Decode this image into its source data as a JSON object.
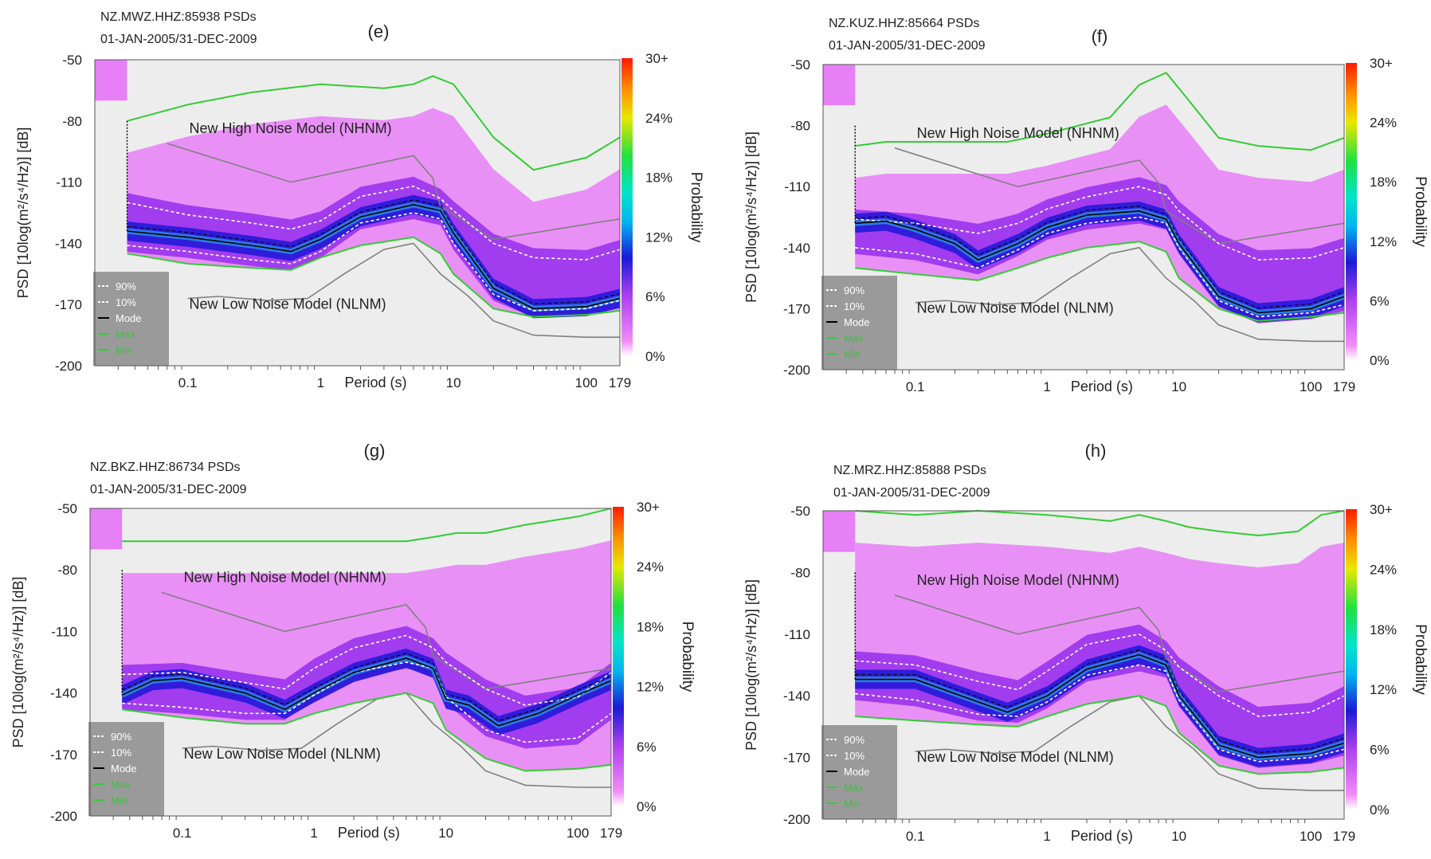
{
  "figure": {
    "x_axis_label": "Period (s)",
    "y_axis_label": "PSD [10log(m²/s⁴/Hz)] [dB]",
    "x_ticks": [
      "0.1",
      "1",
      "10",
      "100",
      "179"
    ],
    "y_ticks": [
      "-50",
      "-80",
      "-110",
      "-140",
      "-170",
      "-200"
    ],
    "colorbar_label": "Probability",
    "colorbar_ticks": [
      "30+",
      "24%",
      "18%",
      "12%",
      "6%",
      "0%"
    ],
    "nhnm_label": "New High Noise Model (NHNM)",
    "nlnm_label": "New Low Noise Model (NLNM)",
    "legend": [
      {
        "label": "90%",
        "color": "#ffffff",
        "style": "dashed"
      },
      {
        "label": "10%",
        "color": "#ffffff",
        "style": "dashed"
      },
      {
        "label": "Mode",
        "color": "#000000",
        "style": "solid"
      },
      {
        "label": "Max",
        "color": "#33cc33",
        "style": "solid"
      },
      {
        "label": "Min",
        "color": "#33cc33",
        "style": "solid"
      }
    ],
    "colors": {
      "plot_bg": "#ededed",
      "band_light": "#e77ff7",
      "band_mid": "#9a33ee",
      "band_core": "#2a1ad8",
      "ridge": "#26c9ee",
      "model_line": "#808080",
      "envelope": "#33cc33",
      "legend_bg": "#9a9a9a"
    }
  },
  "chart_data": [
    {
      "panel": "(e)",
      "title": "NZ.MWZ.HHZ:85938 PSDs",
      "subtitle": "01-JAN-2005/31-DEC-2009",
      "type": "heatmap",
      "xscale": "log",
      "xlim": [
        0.02,
        179
      ],
      "ylim": [
        -200,
        -50
      ],
      "series": [
        {
          "name": "Mode",
          "x": [
            0.035,
            0.1,
            0.3,
            0.6,
            1,
            2,
            5,
            8,
            10,
            20,
            40,
            100,
            179
          ],
          "y": [
            -134,
            -137,
            -141,
            -144,
            -138,
            -127,
            -121,
            -124,
            -135,
            -162,
            -172,
            -171,
            -167
          ]
        },
        {
          "name": "90%",
          "x": [
            0.035,
            0.1,
            0.3,
            0.6,
            1,
            2,
            5,
            8,
            10,
            20,
            40,
            100,
            179
          ],
          "y": [
            -120,
            -126,
            -130,
            -133,
            -129,
            -117,
            -112,
            -118,
            -124,
            -140,
            -147,
            -148,
            -143
          ]
        },
        {
          "name": "10%",
          "x": [
            0.035,
            0.1,
            0.3,
            0.6,
            1,
            2,
            5,
            8,
            10,
            20,
            40,
            100,
            179
          ],
          "y": [
            -141,
            -144,
            -148,
            -150,
            -144,
            -130,
            -125,
            -128,
            -140,
            -165,
            -173,
            -172,
            -168
          ]
        },
        {
          "name": "Max",
          "x": [
            0.035,
            0.1,
            0.3,
            1,
            3,
            5,
            7,
            10,
            20,
            40,
            100,
            179
          ],
          "y": [
            -80,
            -72,
            -66,
            -62,
            -64,
            -62,
            -58,
            -62,
            -88,
            -104,
            -98,
            -88
          ]
        },
        {
          "name": "Min",
          "x": [
            0.035,
            0.1,
            0.3,
            0.6,
            1,
            2,
            5,
            8,
            10,
            20,
            40,
            100,
            179
          ],
          "y": [
            -145,
            -150,
            -152,
            -153,
            -147,
            -141,
            -137,
            -145,
            -155,
            -172,
            -176,
            -175,
            -173
          ]
        }
      ]
    },
    {
      "panel": "(f)",
      "title": "NZ.KUZ.HHZ:85664 PSDs",
      "subtitle": "01-JAN-2005/31-DEC-2009",
      "type": "heatmap",
      "xscale": "log",
      "xlim": [
        0.02,
        179
      ],
      "ylim": [
        -200,
        -50
      ],
      "series": [
        {
          "name": "Mode",
          "x": [
            0.035,
            0.06,
            0.1,
            0.2,
            0.3,
            0.6,
            1,
            2,
            5,
            8,
            10,
            20,
            40,
            100,
            179
          ],
          "y": [
            -128,
            -127,
            -131,
            -138,
            -146,
            -138,
            -130,
            -124,
            -122,
            -126,
            -138,
            -164,
            -172,
            -170,
            -164
          ]
        },
        {
          "name": "90%",
          "x": [
            0.035,
            0.1,
            0.3,
            0.6,
            1,
            2,
            5,
            8,
            10,
            20,
            40,
            100,
            179
          ],
          "y": [
            -126,
            -128,
            -133,
            -128,
            -121,
            -115,
            -110,
            -114,
            -122,
            -138,
            -146,
            -145,
            -140
          ]
        },
        {
          "name": "10%",
          "x": [
            0.035,
            0.1,
            0.3,
            0.6,
            1,
            2,
            5,
            8,
            10,
            20,
            40,
            100,
            179
          ],
          "y": [
            -140,
            -143,
            -150,
            -141,
            -133,
            -128,
            -125,
            -128,
            -140,
            -166,
            -174,
            -172,
            -168
          ]
        },
        {
          "name": "Max",
          "x": [
            0.035,
            0.06,
            0.2,
            0.5,
            1,
            3,
            5,
            8,
            12,
            20,
            40,
            100,
            179
          ],
          "y": [
            -90,
            -88,
            -88,
            -88,
            -84,
            -76,
            -60,
            -54,
            -68,
            -86,
            -90,
            -92,
            -86
          ]
        },
        {
          "name": "Min",
          "x": [
            0.035,
            0.1,
            0.3,
            0.6,
            1,
            2,
            5,
            8,
            10,
            20,
            40,
            100,
            179
          ],
          "y": [
            -150,
            -153,
            -156,
            -150,
            -145,
            -140,
            -137,
            -142,
            -155,
            -170,
            -176,
            -174,
            -172
          ]
        }
      ]
    },
    {
      "panel": "(g)",
      "title": "NZ.BKZ.HHZ:86734 PSDs",
      "subtitle": "01-JAN-2005/31-DEC-2009",
      "type": "heatmap",
      "xscale": "log",
      "xlim": [
        0.02,
        179
      ],
      "ylim": [
        -200,
        -50
      ],
      "series": [
        {
          "name": "Mode",
          "x": [
            0.035,
            0.06,
            0.1,
            0.3,
            0.6,
            1,
            2,
            5,
            8,
            10,
            15,
            25,
            50,
            100,
            179
          ],
          "y": [
            -141,
            -134,
            -133,
            -140,
            -148,
            -140,
            -130,
            -123,
            -128,
            -143,
            -146,
            -156,
            -150,
            -141,
            -134
          ]
        },
        {
          "name": "90%",
          "x": [
            0.035,
            0.1,
            0.3,
            0.6,
            1,
            2,
            5,
            8,
            10,
            20,
            40,
            100,
            179
          ],
          "y": [
            -131,
            -130,
            -135,
            -138,
            -128,
            -118,
            -112,
            -118,
            -125,
            -138,
            -146,
            -142,
            -130
          ]
        },
        {
          "name": "10%",
          "x": [
            0.035,
            0.1,
            0.3,
            0.6,
            1,
            2,
            5,
            8,
            10,
            20,
            40,
            100,
            179
          ],
          "y": [
            -145,
            -147,
            -150,
            -150,
            -141,
            -130,
            -125,
            -128,
            -142,
            -158,
            -164,
            -162,
            -150
          ]
        },
        {
          "name": "Max",
          "x": [
            0.035,
            0.1,
            0.3,
            1,
            3,
            5,
            8,
            12,
            20,
            40,
            100,
            179
          ],
          "y": [
            -66,
            -66,
            -66,
            -66,
            -66,
            -66,
            -64,
            -62,
            -62,
            -58,
            -54,
            -50
          ]
        },
        {
          "name": "Min",
          "x": [
            0.035,
            0.1,
            0.3,
            0.6,
            1,
            2,
            5,
            8,
            10,
            20,
            40,
            100,
            179
          ],
          "y": [
            -148,
            -152,
            -155,
            -155,
            -150,
            -145,
            -140,
            -145,
            -158,
            -172,
            -178,
            -177,
            -175
          ]
        }
      ]
    },
    {
      "panel": "(h)",
      "title": "NZ.MRZ.HHZ:85888 PSDs",
      "subtitle": "01-JAN-2005/31-DEC-2009",
      "type": "heatmap",
      "xscale": "log",
      "xlim": [
        0.02,
        179
      ],
      "ylim": [
        -200,
        -50
      ],
      "series": [
        {
          "name": "Mode",
          "x": [
            0.035,
            0.1,
            0.3,
            0.5,
            1,
            2,
            5,
            8,
            10,
            20,
            40,
            100,
            179
          ],
          "y": [
            -132,
            -132,
            -143,
            -148,
            -140,
            -127,
            -120,
            -125,
            -140,
            -164,
            -170,
            -168,
            -163
          ]
        },
        {
          "name": "90%",
          "x": [
            0.035,
            0.1,
            0.3,
            0.6,
            1,
            2,
            5,
            8,
            10,
            20,
            40,
            100,
            179
          ],
          "y": [
            -123,
            -125,
            -133,
            -137,
            -128,
            -115,
            -110,
            -118,
            -126,
            -140,
            -150,
            -148,
            -140
          ]
        },
        {
          "name": "10%",
          "x": [
            0.035,
            0.1,
            0.3,
            0.6,
            1,
            2,
            5,
            8,
            10,
            20,
            40,
            100,
            179
          ],
          "y": [
            -139,
            -142,
            -149,
            -150,
            -143,
            -130,
            -125,
            -128,
            -142,
            -166,
            -172,
            -170,
            -166
          ]
        },
        {
          "name": "Max",
          "x": [
            0.035,
            0.1,
            0.3,
            1,
            3,
            5,
            8,
            12,
            20,
            40,
            80,
            120,
            179
          ],
          "y": [
            -50,
            -52,
            -50,
            -52,
            -55,
            -52,
            -55,
            -58,
            -60,
            -62,
            -60,
            -52,
            -50
          ]
        },
        {
          "name": "Min",
          "x": [
            0.035,
            0.1,
            0.3,
            0.6,
            1,
            2,
            5,
            8,
            10,
            20,
            40,
            100,
            179
          ],
          "y": [
            -150,
            -152,
            -154,
            -155,
            -150,
            -144,
            -140,
            -145,
            -158,
            -174,
            -178,
            -177,
            -175
          ]
        }
      ]
    }
  ]
}
